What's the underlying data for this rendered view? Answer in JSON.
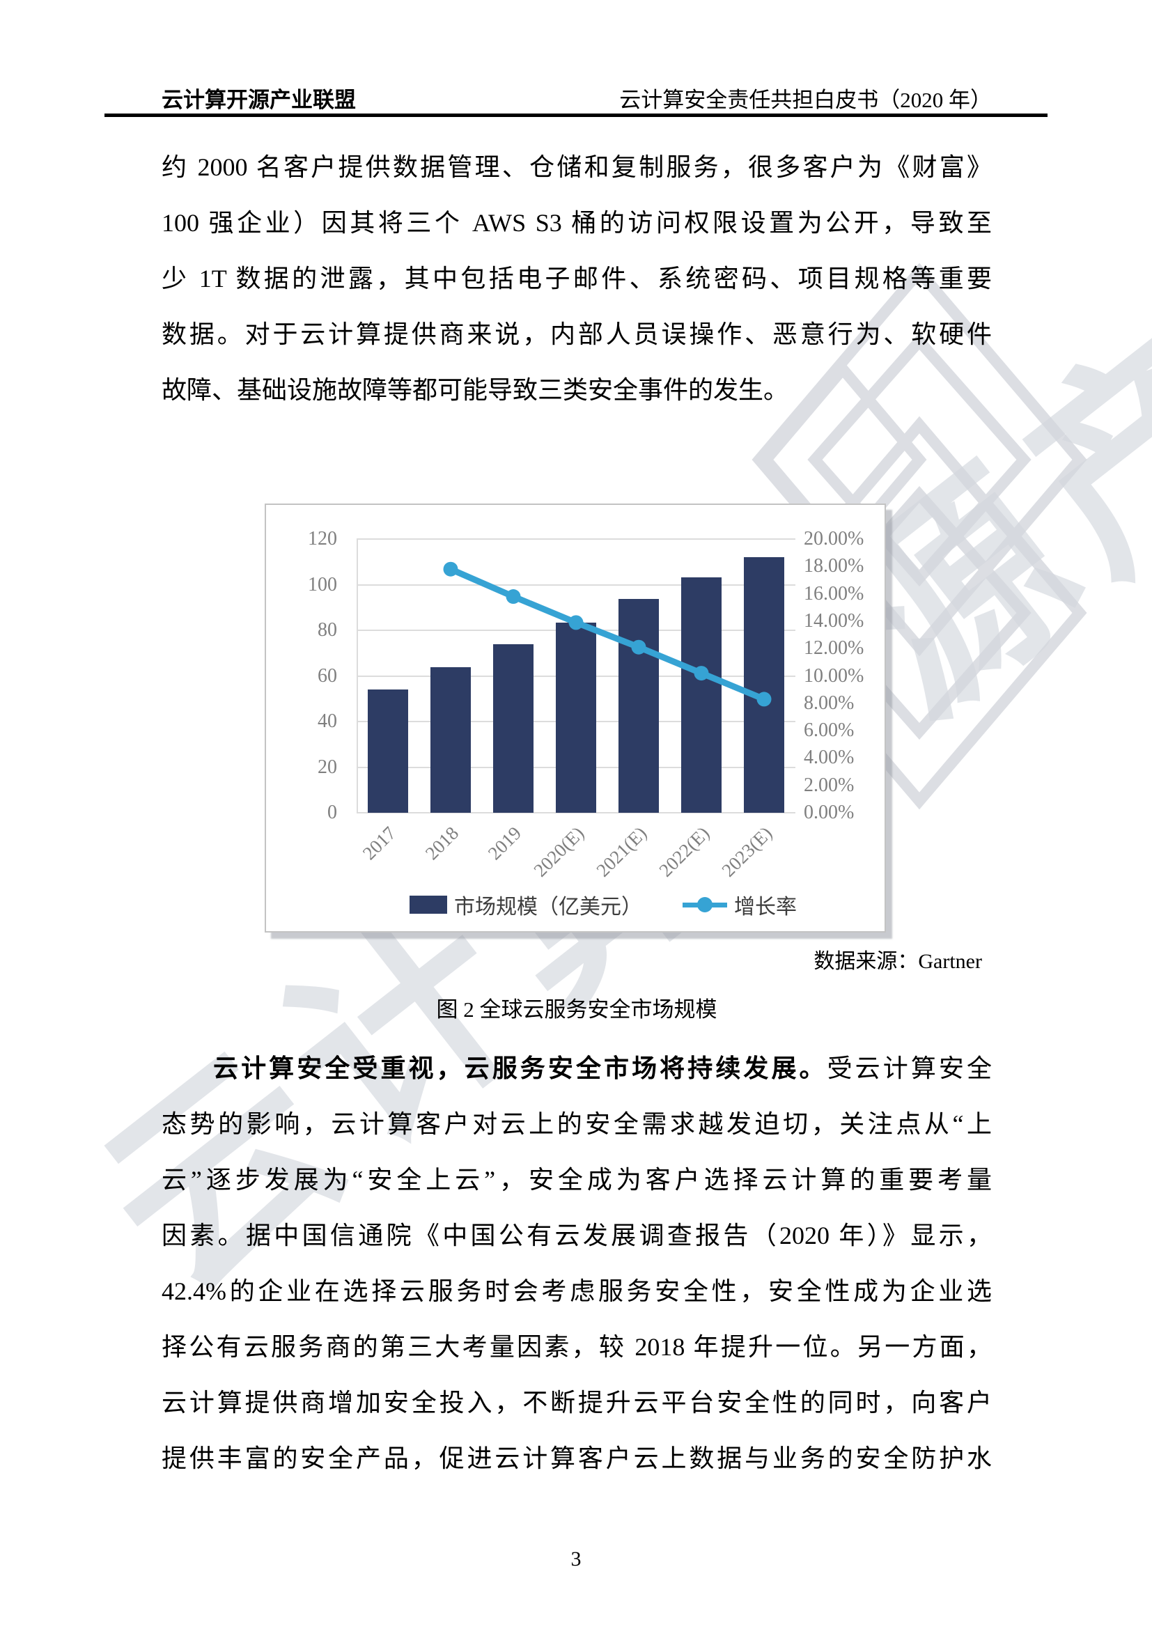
{
  "page": {
    "header_left": "云计算开源产业联盟",
    "header_right": "云计算安全责任共担白皮书（2020 年）",
    "page_number": "3"
  },
  "watermark": {
    "text": "云计算开源产业联盟"
  },
  "para1": {
    "lines": [
      "约 2000 名客户提供数据管理、仓储和复制服务，很多客户为《财富》",
      "100 强企业）因其将三个 AWS S3 桶的访问权限设置为公开，导致至",
      "少 1T 数据的泄露，其中包括电子邮件、系统密码、项目规格等重要",
      "数据。对于云计算提供商来说，内部人员误操作、恶意行为、软硬件",
      "故障、基础设施故障等都可能导致三类安全事件的发生。"
    ]
  },
  "figure": {
    "caption": "图 2 全球云服务安全市场规模"
  },
  "para2": {
    "lead_bold": "云计算安全受重视，云服务安全市场将持续发展。",
    "lead_rest": "受云计算安全",
    "lines": [
      "态势的影响，云计算客户对云上的安全需求越发迫切，关注点从“上",
      "云”逐步发展为“安全上云”，安全成为客户选择云计算的重要考量",
      "因素。据中国信通院《中国公有云发展调查报告（2020 年）》显示，",
      "42.4%的企业在选择云服务时会考虑服务安全性，安全性成为企业选",
      "择公有云服务商的第三大考量因素，较 2018 年提升一位。另一方面，",
      "云计算提供商增加安全投入，不断提升云平台安全性的同时，向客户",
      "提供丰富的安全产品，促进云计算客户云上数据与业务的安全防护水"
    ]
  },
  "chart_data": {
    "type": "combo-bar-line",
    "categories": [
      "2017",
      "2018",
      "2019",
      "2020(E)",
      "2021(E)",
      "2022(E)",
      "2023(E)"
    ],
    "series": [
      {
        "name": "市场规模（亿美元）",
        "type": "bar",
        "axis": "left",
        "color": "#2d3c64",
        "values": [
          54,
          63.7,
          73.9,
          83.5,
          93.8,
          103.2,
          112
        ]
      },
      {
        "name": "增长率",
        "type": "line",
        "axis": "right",
        "color": "#36a3d4",
        "values": [
          null,
          17.8,
          15.8,
          13.9,
          12.1,
          10.2,
          8.3
        ]
      }
    ],
    "left_axis": {
      "min": 0,
      "max": 120,
      "step": 20,
      "ticks": [
        "0",
        "20",
        "40",
        "60",
        "80",
        "100",
        "120"
      ]
    },
    "right_axis": {
      "min": 0,
      "max": 20,
      "step": 2,
      "ticks": [
        "0.00%",
        "2.00%",
        "4.00%",
        "6.00%",
        "8.00%",
        "10.00%",
        "12.00%",
        "14.00%",
        "16.00%",
        "18.00%",
        "20.00%"
      ]
    },
    "legend_position": "bottom",
    "gridlines": "horizontal",
    "source": "数据来源：Gartner"
  }
}
